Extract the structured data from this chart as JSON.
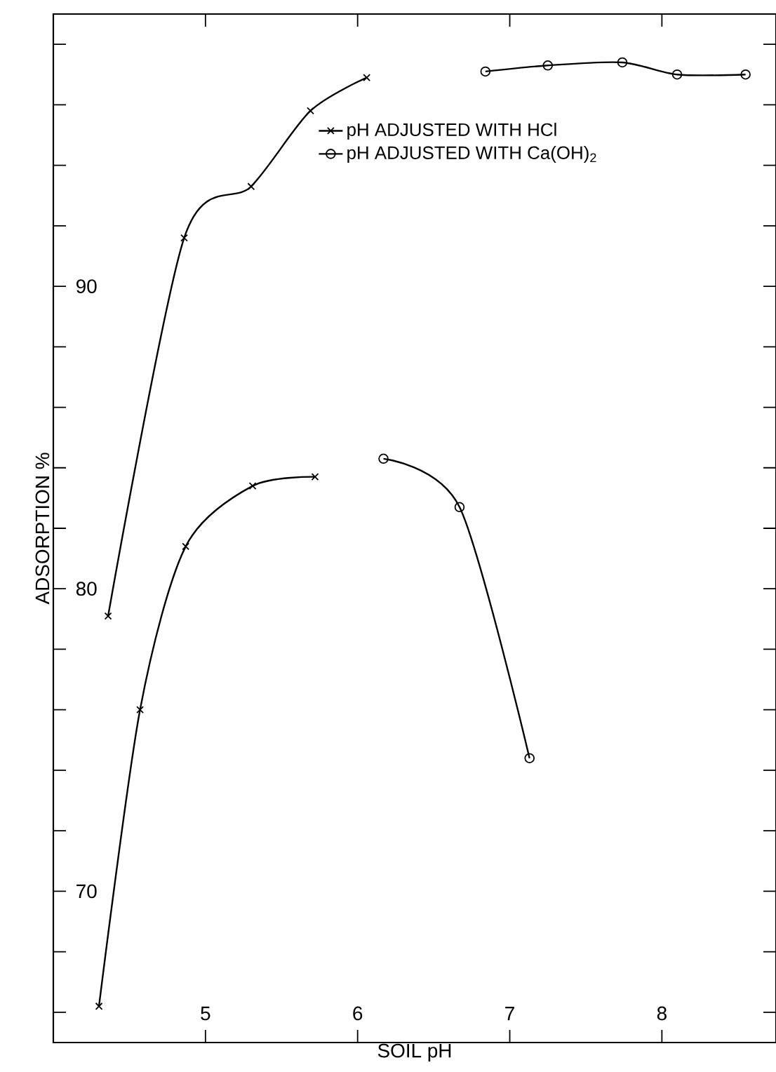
{
  "chart_data": {
    "type": "line",
    "xlabel": "SOIL  pH",
    "ylabel": "ADSORPTION %",
    "xlim": [
      4,
      8.75
    ],
    "ylim": [
      65,
      99
    ],
    "xticks": [
      5,
      6,
      7,
      8
    ],
    "yticks": [
      {
        "value": 66,
        "label": null
      },
      {
        "value": 68,
        "label": null
      },
      70,
      {
        "value": 72,
        "label": null
      },
      {
        "value": 74,
        "label": null
      },
      {
        "value": 76,
        "label": null
      },
      {
        "value": 78,
        "label": null
      },
      80,
      {
        "value": 82,
        "label": null
      },
      {
        "value": 84,
        "label": null
      },
      {
        "value": 86,
        "label": null
      },
      {
        "value": 88,
        "label": null
      },
      90,
      {
        "value": 92,
        "label": null
      },
      {
        "value": 94,
        "label": null
      },
      {
        "value": 96,
        "label": null
      },
      {
        "value": 98,
        "label": null
      }
    ],
    "grid": false,
    "legend": "top right",
    "line_style": "solid",
    "series": [
      {
        "name": "pH  ADJUSTED  WITH  HCl",
        "color": "#000000",
        "marker": "cross",
        "x": [
          4.36,
          4.86,
          5.3,
          5.69,
          6.06
        ],
        "values": [
          79.1,
          91.6,
          93.3,
          95.8,
          96.9
        ]
      },
      {
        "name": "pH  ADJUSTED  WITH  Ca(OH)$_{2}$",
        "color": "#000000",
        "marker": "circle",
        "x": [
          6.84,
          7.25,
          7.74,
          8.1,
          8.55
        ],
        "values": [
          97.1,
          97.3,
          97.4,
          97.0,
          97.0
        ]
      },
      {
        "color": "#000000",
        "marker": "cross",
        "x": [
          4.3,
          4.57,
          4.87,
          5.31,
          5.72
        ],
        "values": [
          66.2,
          76.0,
          81.4,
          83.4,
          83.7
        ]
      },
      {
        "color": "#000000",
        "marker": "circle",
        "x": [
          6.17,
          6.67,
          7.13
        ],
        "values": [
          84.3,
          82.7,
          74.4
        ]
      }
    ]
  }
}
